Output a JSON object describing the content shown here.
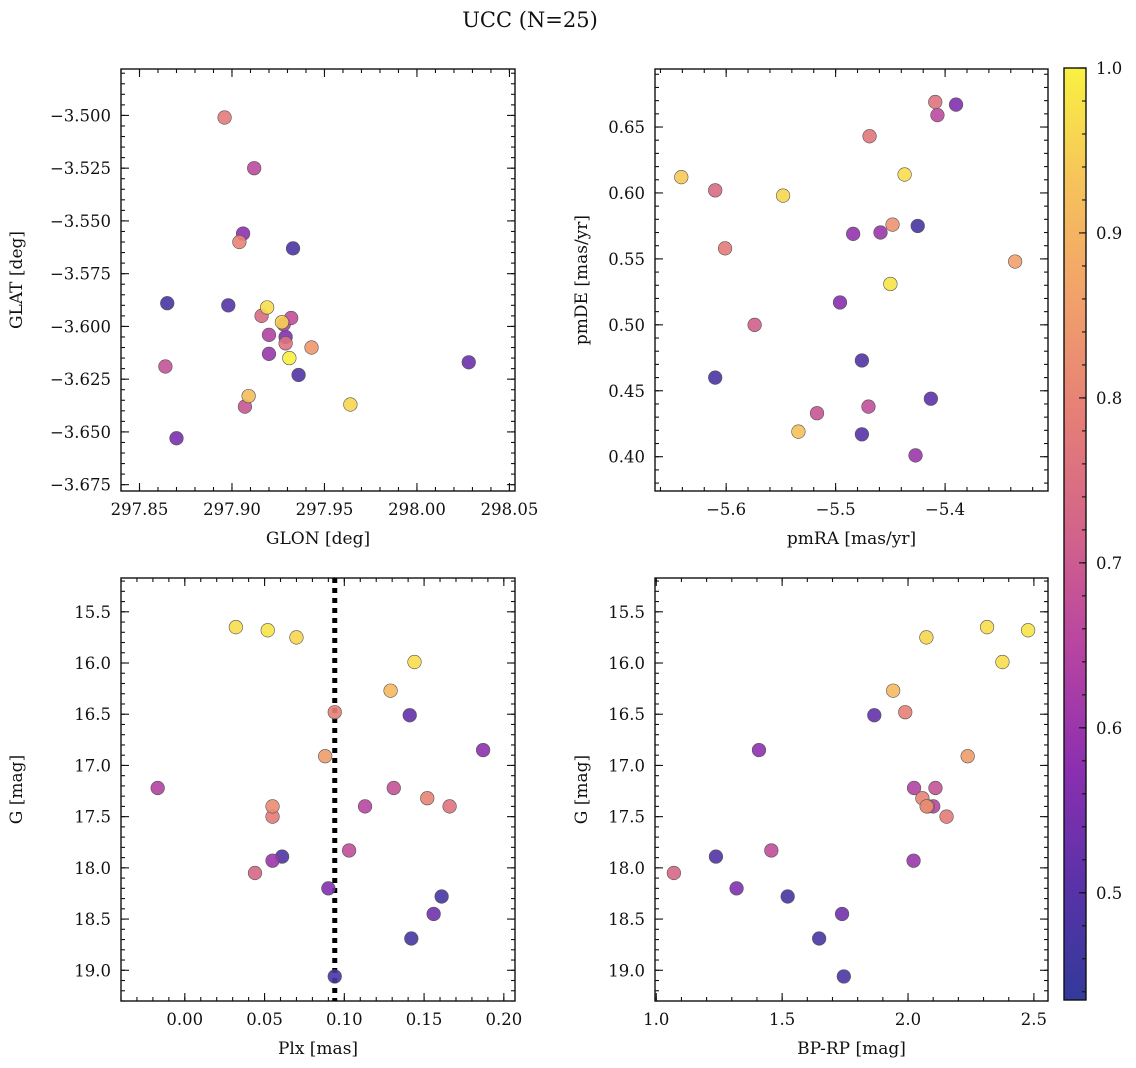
{
  "title": "UCC (N=25)",
  "colorbar": {
    "range": [
      0.435,
      1.0
    ],
    "ticks": [
      0.5,
      0.6,
      0.7,
      0.8,
      0.9,
      1.0
    ],
    "tick_labels": [
      "0.5",
      "0.6",
      "0.7",
      "0.8",
      "0.9",
      "1.0"
    ],
    "colormap": "plasma",
    "colormap_stops": [
      "#323a9a",
      "#5a32a8",
      "#8c2fb0",
      "#b744a2",
      "#d2638a",
      "#e57e77",
      "#f1a06b",
      "#f6c25b",
      "#f9f142"
    ]
  },
  "chart_data": [
    {
      "type": "scatter",
      "id": "lonlat",
      "xlabel": "GLON [deg]",
      "ylabel": "GLAT [deg]",
      "xlim": [
        297.84,
        298.053
      ],
      "ylim": [
        -3.678,
        -3.478
      ],
      "y_inverted": false,
      "xticks": [
        297.85,
        297.9,
        297.95,
        298.0,
        298.05
      ],
      "xtick_labels": [
        "297.85",
        "297.90",
        "297.95",
        "298.00",
        "298.05"
      ],
      "yticks": [
        -3.5,
        -3.525,
        -3.55,
        -3.575,
        -3.6,
        -3.625,
        -3.65,
        -3.675
      ],
      "ytick_labels": [
        "−3.500",
        "−3.525",
        "−3.550",
        "−3.575",
        "−3.600",
        "−3.625",
        "−3.650",
        "−3.675"
      ],
      "points": [
        {
          "x": 297.896,
          "y": -3.501,
          "c": 0.78
        },
        {
          "x": 297.912,
          "y": -3.525,
          "c": 0.66
        },
        {
          "x": 297.906,
          "y": -3.556,
          "c": 0.58
        },
        {
          "x": 297.904,
          "y": -3.56,
          "c": 0.8
        },
        {
          "x": 297.933,
          "y": -3.563,
          "c": 0.48
        },
        {
          "x": 297.865,
          "y": -3.589,
          "c": 0.47
        },
        {
          "x": 297.898,
          "y": -3.59,
          "c": 0.5
        },
        {
          "x": 297.919,
          "y": -3.591,
          "c": 0.97
        },
        {
          "x": 297.916,
          "y": -3.595,
          "c": 0.74
        },
        {
          "x": 297.932,
          "y": -3.596,
          "c": 0.67
        },
        {
          "x": 297.927,
          "y": -3.598,
          "c": 0.95
        },
        {
          "x": 297.928,
          "y": -3.599,
          "c": 0.63
        },
        {
          "x": 297.92,
          "y": -3.604,
          "c": 0.64
        },
        {
          "x": 297.929,
          "y": -3.605,
          "c": 0.56
        },
        {
          "x": 297.929,
          "y": -3.608,
          "c": 0.76
        },
        {
          "x": 297.943,
          "y": -3.61,
          "c": 0.84
        },
        {
          "x": 297.92,
          "y": -3.613,
          "c": 0.6
        },
        {
          "x": 297.931,
          "y": -3.615,
          "c": 1.0
        },
        {
          "x": 298.028,
          "y": -3.617,
          "c": 0.53
        },
        {
          "x": 297.864,
          "y": -3.619,
          "c": 0.68
        },
        {
          "x": 297.936,
          "y": -3.623,
          "c": 0.49
        },
        {
          "x": 297.909,
          "y": -3.633,
          "c": 0.92
        },
        {
          "x": 297.907,
          "y": -3.638,
          "c": 0.69
        },
        {
          "x": 297.964,
          "y": -3.637,
          "c": 0.96
        },
        {
          "x": 297.87,
          "y": -3.653,
          "c": 0.55
        }
      ]
    },
    {
      "type": "scatter",
      "id": "pm",
      "xlabel": "pmRA [mas/yr]",
      "ylabel": "pmDE [mas/yr]",
      "xlim": [
        -5.665,
        -5.306
      ],
      "ylim": [
        0.374,
        0.694
      ],
      "y_inverted": false,
      "xticks": [
        -5.6,
        -5.5,
        -5.4
      ],
      "xtick_labels": [
        "−5.6",
        "−5.5",
        "−5.4"
      ],
      "yticks": [
        0.4,
        0.45,
        0.5,
        0.55,
        0.6,
        0.65
      ],
      "ytick_labels": [
        "0.40",
        "0.45",
        "0.50",
        "0.55",
        "0.60",
        "0.65"
      ],
      "points": [
        {
          "x": -5.409,
          "y": 0.669,
          "c": 0.76
        },
        {
          "x": -5.39,
          "y": 0.667,
          "c": 0.56
        },
        {
          "x": -5.407,
          "y": 0.659,
          "c": 0.66
        },
        {
          "x": -5.469,
          "y": 0.643,
          "c": 0.77
        },
        {
          "x": -5.641,
          "y": 0.612,
          "c": 0.94
        },
        {
          "x": -5.437,
          "y": 0.614,
          "c": 0.97
        },
        {
          "x": -5.61,
          "y": 0.602,
          "c": 0.74
        },
        {
          "x": -5.548,
          "y": 0.598,
          "c": 0.96
        },
        {
          "x": -5.448,
          "y": 0.576,
          "c": 0.83
        },
        {
          "x": -5.425,
          "y": 0.575,
          "c": 0.47
        },
        {
          "x": -5.484,
          "y": 0.569,
          "c": 0.59
        },
        {
          "x": -5.459,
          "y": 0.57,
          "c": 0.6
        },
        {
          "x": -5.601,
          "y": 0.558,
          "c": 0.78
        },
        {
          "x": -5.336,
          "y": 0.548,
          "c": 0.86
        },
        {
          "x": -5.45,
          "y": 0.531,
          "c": 0.98
        },
        {
          "x": -5.496,
          "y": 0.517,
          "c": 0.57
        },
        {
          "x": -5.574,
          "y": 0.5,
          "c": 0.71
        },
        {
          "x": -5.476,
          "y": 0.473,
          "c": 0.49
        },
        {
          "x": -5.61,
          "y": 0.46,
          "c": 0.48
        },
        {
          "x": -5.413,
          "y": 0.444,
          "c": 0.51
        },
        {
          "x": -5.47,
          "y": 0.438,
          "c": 0.67
        },
        {
          "x": -5.517,
          "y": 0.433,
          "c": 0.69
        },
        {
          "x": -5.534,
          "y": 0.419,
          "c": 0.93
        },
        {
          "x": -5.476,
          "y": 0.417,
          "c": 0.5
        },
        {
          "x": -5.427,
          "y": 0.401,
          "c": 0.6
        }
      ]
    },
    {
      "type": "scatter",
      "id": "plxg",
      "xlabel": "Plx [mas]",
      "ylabel": "G [mag]",
      "xlim": [
        -0.04,
        0.207
      ],
      "ylim": [
        19.3,
        15.17
      ],
      "y_inverted": true,
      "xticks": [
        0.0,
        0.05,
        0.1,
        0.15,
        0.2
      ],
      "xtick_labels": [
        "0.00",
        "0.05",
        "0.10",
        "0.15",
        "0.20"
      ],
      "yticks": [
        15.5,
        16.0,
        16.5,
        17.0,
        17.5,
        18.0,
        18.5,
        19.0
      ],
      "ytick_labels": [
        "15.5",
        "16.0",
        "16.5",
        "17.0",
        "17.5",
        "18.0",
        "18.5",
        "19.0"
      ],
      "vline": 0.094,
      "points": [
        {
          "x": 0.032,
          "y": 15.65,
          "c": 0.97
        },
        {
          "x": 0.052,
          "y": 15.68,
          "c": 0.98
        },
        {
          "x": 0.07,
          "y": 15.75,
          "c": 0.96
        },
        {
          "x": 0.144,
          "y": 15.99,
          "c": 0.97
        },
        {
          "x": 0.129,
          "y": 16.27,
          "c": 0.91
        },
        {
          "x": 0.094,
          "y": 16.48,
          "c": 0.79
        },
        {
          "x": 0.141,
          "y": 16.51,
          "c": 0.52
        },
        {
          "x": 0.187,
          "y": 16.85,
          "c": 0.58
        },
        {
          "x": 0.088,
          "y": 16.91,
          "c": 0.85
        },
        {
          "x": -0.017,
          "y": 17.22,
          "c": 0.64
        },
        {
          "x": 0.131,
          "y": 17.22,
          "c": 0.68
        },
        {
          "x": 0.152,
          "y": 17.32,
          "c": 0.8
        },
        {
          "x": 0.055,
          "y": 17.4,
          "c": 0.82
        },
        {
          "x": 0.113,
          "y": 17.4,
          "c": 0.65
        },
        {
          "x": 0.166,
          "y": 17.4,
          "c": 0.76
        },
        {
          "x": 0.055,
          "y": 17.5,
          "c": 0.78
        },
        {
          "x": 0.103,
          "y": 17.83,
          "c": 0.67
        },
        {
          "x": 0.061,
          "y": 17.89,
          "c": 0.49
        },
        {
          "x": 0.055,
          "y": 17.93,
          "c": 0.6
        },
        {
          "x": 0.044,
          "y": 18.05,
          "c": 0.73
        },
        {
          "x": 0.09,
          "y": 18.2,
          "c": 0.56
        },
        {
          "x": 0.161,
          "y": 18.28,
          "c": 0.47
        },
        {
          "x": 0.156,
          "y": 18.45,
          "c": 0.54
        },
        {
          "x": 0.142,
          "y": 18.69,
          "c": 0.47
        },
        {
          "x": 0.094,
          "y": 19.06,
          "c": 0.48
        }
      ]
    },
    {
      "type": "scatter",
      "id": "cmd",
      "xlabel": "BP-RP [mag]",
      "ylabel": "G [mag]",
      "xlim": [
        0.995,
        2.556
      ],
      "ylim": [
        19.3,
        15.17
      ],
      "y_inverted": true,
      "xticks": [
        1.0,
        1.5,
        2.0,
        2.5
      ],
      "xtick_labels": [
        "1.0",
        "1.5",
        "2.0",
        "2.5"
      ],
      "yticks": [
        15.5,
        16.0,
        16.5,
        17.0,
        17.5,
        18.0,
        18.5,
        19.0
      ],
      "ytick_labels": [
        "15.5",
        "16.0",
        "16.5",
        "17.0",
        "17.5",
        "18.0",
        "18.5",
        "19.0"
      ],
      "points": [
        {
          "x": 2.314,
          "y": 15.65,
          "c": 0.97
        },
        {
          "x": 2.477,
          "y": 15.68,
          "c": 0.98
        },
        {
          "x": 2.073,
          "y": 15.75,
          "c": 0.96
        },
        {
          "x": 2.375,
          "y": 15.99,
          "c": 0.97
        },
        {
          "x": 1.941,
          "y": 16.27,
          "c": 0.91
        },
        {
          "x": 1.989,
          "y": 16.48,
          "c": 0.79
        },
        {
          "x": 1.866,
          "y": 16.51,
          "c": 0.52
        },
        {
          "x": 1.408,
          "y": 16.85,
          "c": 0.58
        },
        {
          "x": 2.237,
          "y": 16.91,
          "c": 0.85
        },
        {
          "x": 2.024,
          "y": 17.22,
          "c": 0.64
        },
        {
          "x": 2.109,
          "y": 17.22,
          "c": 0.68
        },
        {
          "x": 2.057,
          "y": 17.32,
          "c": 0.8
        },
        {
          "x": 2.074,
          "y": 17.4,
          "c": 0.82
        },
        {
          "x": 2.1,
          "y": 17.4,
          "c": 0.65
        },
        {
          "x": 2.079,
          "y": 17.4,
          "c": 0.76
        },
        {
          "x": 2.153,
          "y": 17.5,
          "c": 0.78
        },
        {
          "x": 1.457,
          "y": 17.83,
          "c": 0.67
        },
        {
          "x": 1.237,
          "y": 17.89,
          "c": 0.49
        },
        {
          "x": 2.022,
          "y": 17.93,
          "c": 0.6
        },
        {
          "x": 1.07,
          "y": 18.05,
          "c": 0.73
        },
        {
          "x": 1.319,
          "y": 18.2,
          "c": 0.56
        },
        {
          "x": 1.522,
          "y": 18.28,
          "c": 0.47
        },
        {
          "x": 1.738,
          "y": 18.45,
          "c": 0.54
        },
        {
          "x": 1.647,
          "y": 18.69,
          "c": 0.47
        },
        {
          "x": 1.745,
          "y": 19.06,
          "c": 0.48
        }
      ]
    }
  ]
}
